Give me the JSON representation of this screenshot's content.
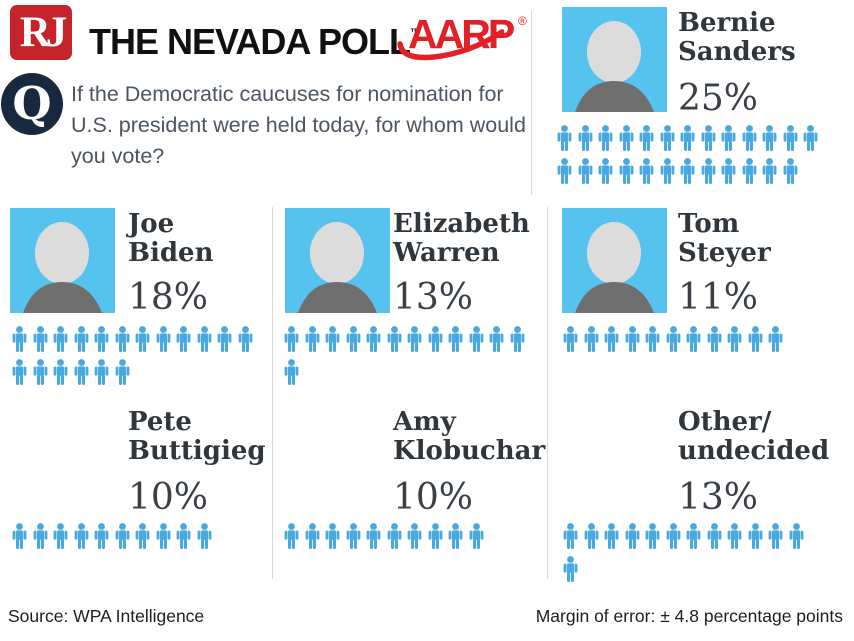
{
  "header": {
    "rj_logo": "RJ",
    "title": "THE NEVADA POLL",
    "trademark": "™",
    "aarp_logo": "AARP",
    "aarp_registered": "®"
  },
  "question": {
    "label": "Q",
    "text": "If the Democratic caucuses for nomination for U.S. president were held today, for whom would you vote?"
  },
  "footer": {
    "source": "Source: WPA Intelligence",
    "margin_of_error": "Margin of error: ± 4.8 percentage points"
  },
  "colors": {
    "person_icon": "#48a8e0",
    "photo_background": "#56c3ef",
    "rj_red": "#c5232b",
    "aarp_red": "#e32026",
    "q_circle_navy": "#16293e",
    "name_text": "#2f363c",
    "question_text": "#4b5661"
  },
  "chart_data": {
    "type": "pictogram",
    "title": "THE NEVADA POLL",
    "question": "If the Democratic caucuses for nomination for U.S. president were held today, for whom would you vote?",
    "unit": "percent (1 person icon = 1 percentage point)",
    "categories": [
      "Bernie Sanders",
      "Joe Biden",
      "Elizabeth Warren",
      "Tom Steyer",
      "Pete Buttigieg",
      "Amy Klobuchar",
      "Other/undecided"
    ],
    "values": [
      25,
      18,
      13,
      11,
      10,
      10,
      13
    ],
    "source": "WPA Intelligence",
    "margin_of_error": "± 4.8 percentage points",
    "candidates": [
      {
        "name": "Bernie Sanders",
        "name_lines": [
          "Bernie",
          "Sanders"
        ],
        "value": 25,
        "percent_label": "25%",
        "icon_rows": [
          13,
          12
        ],
        "has_photo": true
      },
      {
        "name": "Joe Biden",
        "name_lines": [
          "Joe",
          "Biden"
        ],
        "value": 18,
        "percent_label": "18%",
        "icon_rows": [
          12,
          6
        ],
        "has_photo": true
      },
      {
        "name": "Elizabeth Warren",
        "name_lines": [
          "Elizabeth",
          "Warren"
        ],
        "value": 13,
        "percent_label": "13%",
        "icon_rows": [
          12,
          1
        ],
        "has_photo": true
      },
      {
        "name": "Tom Steyer",
        "name_lines": [
          "Tom",
          "Steyer"
        ],
        "value": 11,
        "percent_label": "11%",
        "icon_rows": [
          11
        ],
        "has_photo": true
      },
      {
        "name": "Pete Buttigieg",
        "name_lines": [
          "Pete",
          "Buttigieg"
        ],
        "value": 10,
        "percent_label": "10%",
        "icon_rows": [
          10
        ],
        "has_photo": false
      },
      {
        "name": "Amy Klobuchar",
        "name_lines": [
          "Amy",
          "Klobuchar"
        ],
        "value": 10,
        "percent_label": "10%",
        "icon_rows": [
          10
        ],
        "has_photo": false
      },
      {
        "name": "Other/undecided",
        "name_lines": [
          "Other/",
          "undecided"
        ],
        "value": 13,
        "percent_label": "13%",
        "icon_rows": [
          12,
          1
        ],
        "has_photo": false
      }
    ]
  }
}
